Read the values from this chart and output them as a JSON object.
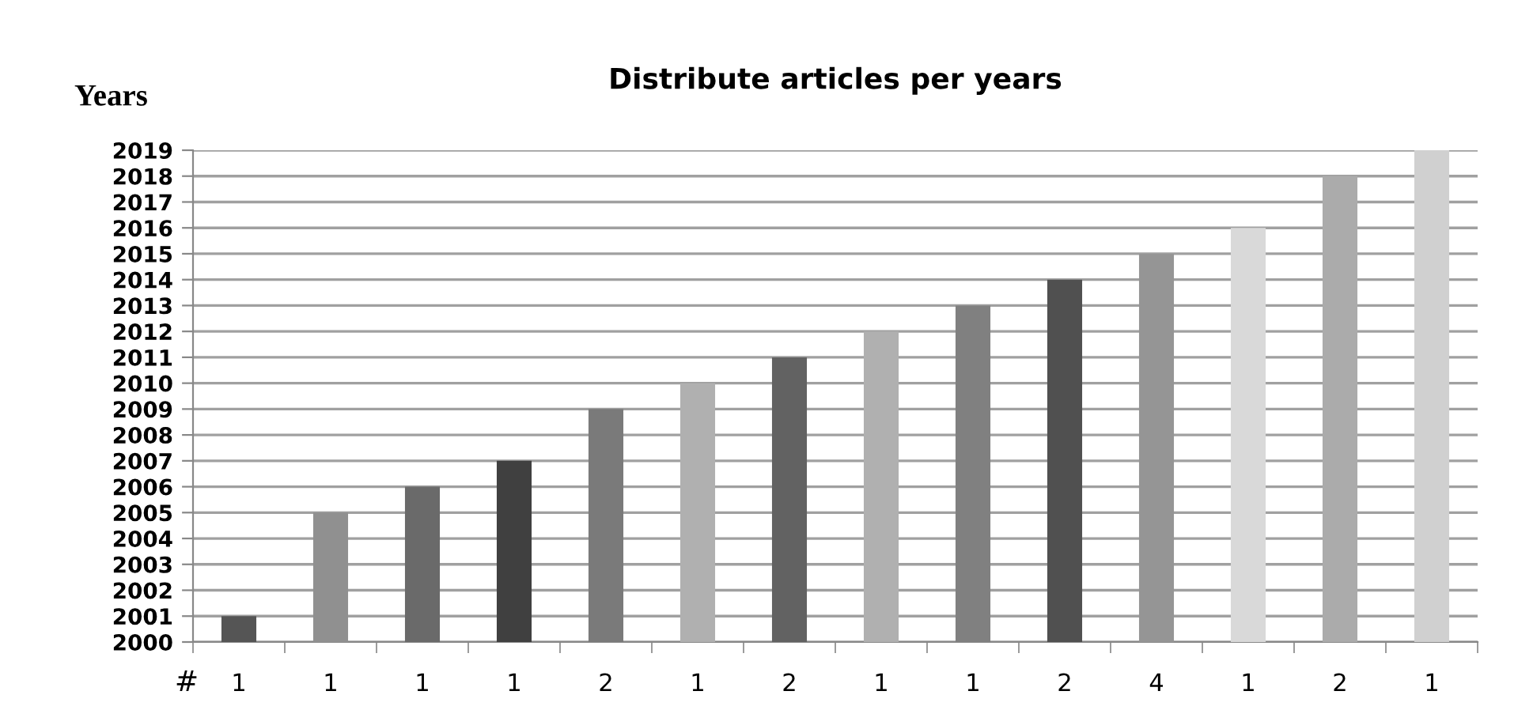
{
  "chart_data": {
    "type": "bar",
    "title": "Distribute articles per years",
    "ylabel": "Years",
    "xlabel": "#",
    "categories": [
      "1",
      "1",
      "1",
      "1",
      "2",
      "1",
      "2",
      "1",
      "1",
      "2",
      "4",
      "1",
      "2",
      "1"
    ],
    "values": [
      2001,
      2005,
      2006,
      2007,
      2009,
      2010,
      2011,
      2012,
      2013,
      2014,
      2015,
      2016,
      2018,
      2019
    ],
    "colors": [
      "#555555",
      "#909090",
      "#6a6a6a",
      "#404040",
      "#7a7a7a",
      "#b0b0b0",
      "#626262",
      "#b0b0b0",
      "#808080",
      "#505050",
      "#959595",
      "#d9d9d9",
      "#ababab",
      "#d0d0d0"
    ],
    "ylim": [
      2000,
      2019
    ],
    "yticks": [
      2000,
      2001,
      2002,
      2003,
      2004,
      2005,
      2006,
      2007,
      2008,
      2009,
      2010,
      2011,
      2012,
      2013,
      2014,
      2015,
      2016,
      2017,
      2018,
      2019
    ],
    "grid": "y",
    "legend": false
  }
}
